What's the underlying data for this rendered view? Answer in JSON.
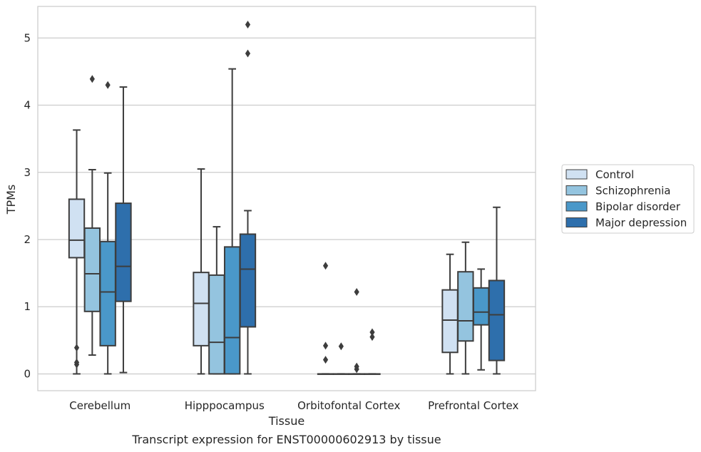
{
  "chart_data": {
    "type": "box",
    "title": "",
    "caption": "Transcript expression for ENST00000602913 by tissue",
    "xlabel": "Tissue",
    "ylabel": "TPMs",
    "ylim": [
      -0.25,
      5.47
    ],
    "yticks": [
      0,
      1,
      2,
      3,
      4,
      5
    ],
    "grid": "horizontal",
    "legend_position": "right",
    "categories": [
      "Cerebellum",
      "Hipppocampus",
      "Orbitofontal Cortex",
      "Prefrontal Cortex"
    ],
    "series": [
      {
        "name": "Control",
        "color": "#d0e1f2",
        "boxes": [
          {
            "whislo": 0.0,
            "q1": 1.73,
            "med": 1.99,
            "q3": 2.6,
            "whishi": 3.63,
            "fliers": [
              0.39,
              0.17,
              0.14
            ]
          },
          {
            "whislo": 0.0,
            "q1": 0.42,
            "med": 1.05,
            "q3": 1.51,
            "whishi": 3.05,
            "fliers": []
          },
          {
            "whislo": 0.0,
            "q1": 0.0,
            "med": 0.0,
            "q3": 0.0,
            "whishi": 0.0,
            "fliers": [
              1.61,
              0.42,
              0.21
            ]
          },
          {
            "whislo": 0.0,
            "q1": 0.32,
            "med": 0.8,
            "q3": 1.25,
            "whishi": 1.78,
            "fliers": []
          }
        ]
      },
      {
        "name": "Schizophrenia",
        "color": "#94c4df",
        "boxes": [
          {
            "whislo": 0.28,
            "q1": 0.93,
            "med": 1.49,
            "q3": 2.17,
            "whishi": 3.04,
            "fliers": [
              4.39
            ]
          },
          {
            "whislo": 0.0,
            "q1": 0.0,
            "med": 0.47,
            "q3": 1.47,
            "whishi": 2.19,
            "fliers": []
          },
          {
            "whislo": 0.0,
            "q1": 0.0,
            "med": 0.0,
            "q3": 0.0,
            "whishi": 0.0,
            "fliers": [
              0.41
            ]
          },
          {
            "whislo": 0.0,
            "q1": 0.49,
            "med": 0.79,
            "q3": 1.52,
            "whishi": 1.96,
            "fliers": []
          }
        ]
      },
      {
        "name": "Bipolar disorder",
        "color": "#4a98c9",
        "boxes": [
          {
            "whislo": 0.0,
            "q1": 0.42,
            "med": 1.22,
            "q3": 1.97,
            "whishi": 2.99,
            "fliers": [
              4.3
            ]
          },
          {
            "whislo": 0.0,
            "q1": 0.0,
            "med": 0.54,
            "q3": 1.89,
            "whishi": 4.54,
            "fliers": []
          },
          {
            "whislo": 0.0,
            "q1": 0.0,
            "med": 0.0,
            "q3": 0.0,
            "whishi": 0.0,
            "fliers": [
              1.22,
              0.11,
              0.07
            ]
          },
          {
            "whislo": 0.06,
            "q1": 0.73,
            "med": 0.92,
            "q3": 1.28,
            "whishi": 1.56,
            "fliers": []
          }
        ]
      },
      {
        "name": "Major depression",
        "color": "#2e6fac",
        "boxes": [
          {
            "whislo": 0.02,
            "q1": 1.08,
            "med": 1.6,
            "q3": 2.54,
            "whishi": 4.27,
            "fliers": []
          },
          {
            "whislo": 0.0,
            "q1": 0.7,
            "med": 1.56,
            "q3": 2.08,
            "whishi": 2.43,
            "fliers": [
              5.2,
              4.77
            ]
          },
          {
            "whislo": 0.0,
            "q1": 0.0,
            "med": 0.0,
            "q3": 0.0,
            "whishi": 0.0,
            "fliers": [
              0.62,
              0.55
            ]
          },
          {
            "whislo": 0.0,
            "q1": 0.2,
            "med": 0.88,
            "q3": 1.39,
            "whishi": 2.48,
            "fliers": []
          }
        ]
      }
    ]
  }
}
